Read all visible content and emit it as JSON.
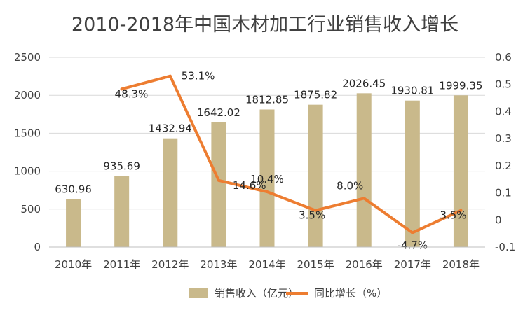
{
  "chart_data": {
    "type": "bar",
    "title": "2010-2018年中国木材加工行业销售收入增长",
    "categories": [
      "2010年",
      "2011年",
      "2012年",
      "2013年",
      "2014年",
      "2015年",
      "2016年",
      "2017年",
      "2018年"
    ],
    "series": [
      {
        "name": "销售收入（亿元）",
        "type": "bar",
        "axis": "left",
        "color": "#c9b98b",
        "values": [
          630.96,
          935.69,
          1432.94,
          1642.02,
          1812.85,
          1875.82,
          2026.45,
          1930.81,
          1999.35
        ],
        "labels": [
          "630.96",
          "935.69",
          "1432.94",
          "1642.02",
          "1812.85",
          "1875.82",
          "2026.45",
          "1930.81",
          "1999.35"
        ]
      },
      {
        "name": "同比增长（%）",
        "type": "line",
        "axis": "right",
        "color": "#ed7d31",
        "values": [
          null,
          0.483,
          0.531,
          0.146,
          0.104,
          0.035,
          0.08,
          -0.047,
          0.035
        ],
        "labels": [
          "",
          "48.3%",
          "53.1%",
          "14.6%",
          "10.4%",
          "3.5%",
          "8.0%",
          "-4.7%",
          "3.5%"
        ]
      }
    ],
    "y_left": {
      "min": 0,
      "max": 2500,
      "ticks": [
        "0",
        "500",
        "1000",
        "1500",
        "2000",
        "2500"
      ]
    },
    "y_right": {
      "min": -0.1,
      "max": 0.6,
      "ticks": [
        "-0.1",
        "0",
        "0.1",
        "0.2",
        "0.3",
        "0.4",
        "0.5",
        "0.6"
      ]
    },
    "grid": true,
    "legend": "bottom"
  }
}
